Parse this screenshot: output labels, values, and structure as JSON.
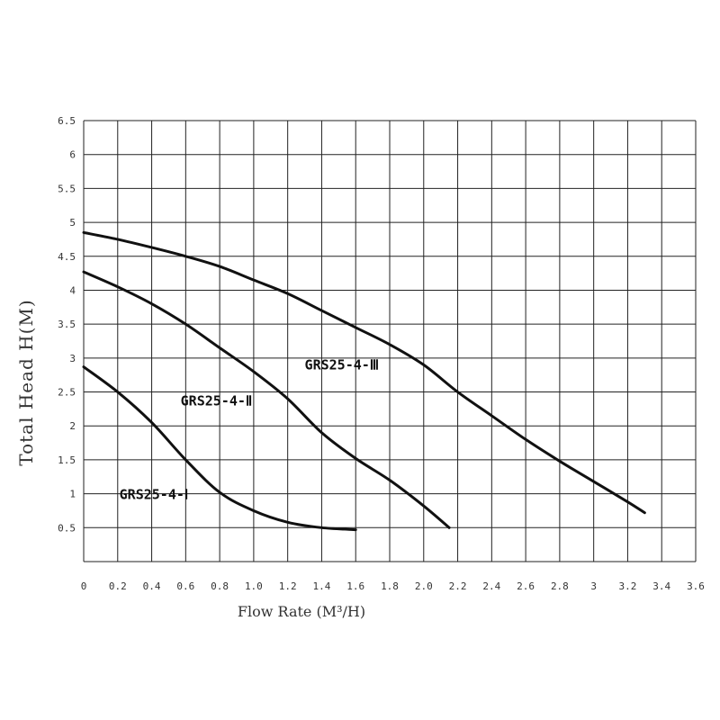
{
  "chart_data": {
    "type": "line",
    "title": "",
    "xlabel": "Flow Rate (M³/H)",
    "ylabel": "Total Head H(M)",
    "xlim": [
      0,
      3.6
    ],
    "ylim": [
      0,
      6.5
    ],
    "x_ticks": [
      "0",
      "0.2",
      "0.4",
      "0.6",
      "0.8",
      "1.0",
      "1.2",
      "1.4",
      "1.6",
      "1.8",
      "2.0",
      "2.2",
      "2.4",
      "2.6",
      "2.8",
      "3",
      "3.2",
      "3.4",
      "3.6"
    ],
    "y_ticks": [
      "0.5",
      "1",
      "1.5",
      "2",
      "2.5",
      "3",
      "3.5",
      "4",
      "4.5",
      "5",
      "5.5",
      "6",
      "6.5"
    ],
    "grid": true,
    "series": [
      {
        "name": "GRS25-4-Ⅰ",
        "x": [
          0,
          0.2,
          0.4,
          0.6,
          0.8,
          1.0,
          1.2,
          1.4,
          1.6
        ],
        "y": [
          2.87,
          2.5,
          2.05,
          1.5,
          1.02,
          0.75,
          0.58,
          0.5,
          0.47
        ]
      },
      {
        "name": "GRS25-4-Ⅱ",
        "x": [
          0,
          0.2,
          0.4,
          0.6,
          0.8,
          1.0,
          1.2,
          1.4,
          1.6,
          1.8,
          2.0,
          2.15
        ],
        "y": [
          4.27,
          4.05,
          3.8,
          3.5,
          3.15,
          2.8,
          2.4,
          1.9,
          1.52,
          1.2,
          0.82,
          0.5
        ]
      },
      {
        "name": "GRS25-4-Ⅲ",
        "x": [
          0,
          0.2,
          0.4,
          0.6,
          0.8,
          1.0,
          1.2,
          1.4,
          1.6,
          1.8,
          2.0,
          2.2,
          2.4,
          2.6,
          2.8,
          3.0,
          3.2,
          3.3
        ],
        "y": [
          4.85,
          4.75,
          4.63,
          4.5,
          4.35,
          4.15,
          3.95,
          3.7,
          3.45,
          3.2,
          2.9,
          2.5,
          2.15,
          1.8,
          1.48,
          1.18,
          0.88,
          0.72
        ]
      }
    ],
    "annotations": [
      {
        "text": "GRS25-4-Ⅰ",
        "x": 0.21,
        "y": 1.0
      },
      {
        "text": "GRS25-4-Ⅱ",
        "x": 0.57,
        "y": 2.38
      },
      {
        "text": "GRS25-4-Ⅲ",
        "x": 1.3,
        "y": 2.91
      }
    ]
  }
}
